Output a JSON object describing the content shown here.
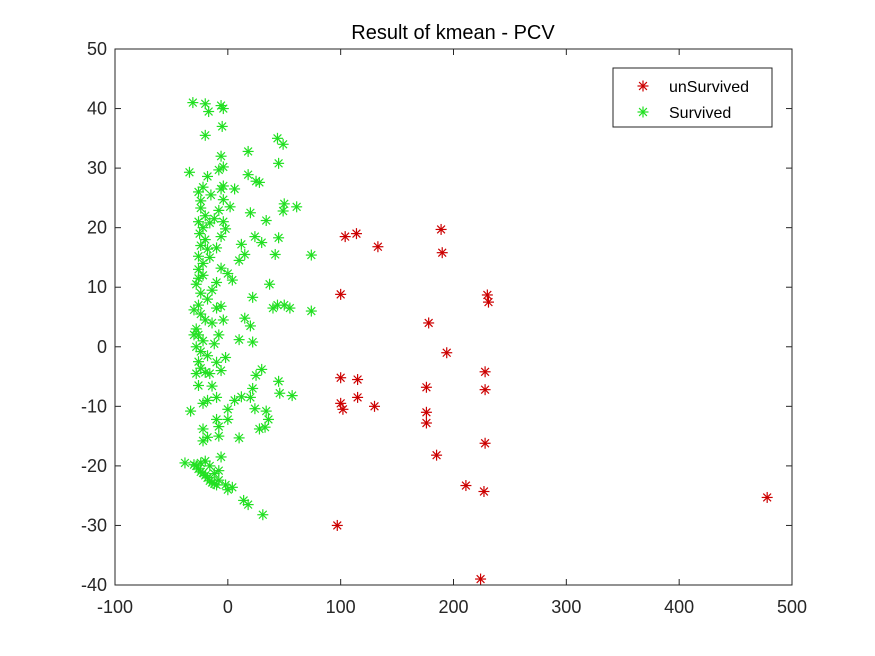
{
  "chart_data": {
    "type": "scatter",
    "title": "Result of kmean - PCV",
    "xlabel": "",
    "ylabel": "",
    "xlim": [
      -100,
      500
    ],
    "ylim": [
      -40,
      50
    ],
    "xticks": [
      -100,
      0,
      100,
      200,
      300,
      400,
      500
    ],
    "yticks": [
      -40,
      -30,
      -20,
      -10,
      0,
      10,
      20,
      30,
      40,
      50
    ],
    "xtick_labels": [
      "-100",
      "0",
      "100",
      "200",
      "300",
      "400",
      "500"
    ],
    "ytick_labels": [
      "-40",
      "-30",
      "-20",
      "-10",
      "0",
      "10",
      "20",
      "30",
      "40",
      "50"
    ],
    "grid": false,
    "legend_position": "top-right",
    "marker": "*",
    "series": [
      {
        "name": "unSurvived",
        "color": "#cc0000",
        "points": [
          [
            97,
            -30
          ],
          [
            100,
            8.8
          ],
          [
            100,
            -5.2
          ],
          [
            100,
            -9.5
          ],
          [
            102,
            -10.5
          ],
          [
            104,
            18.5
          ],
          [
            114,
            19
          ],
          [
            115,
            -5.5
          ],
          [
            115,
            -8.5
          ],
          [
            130,
            -10
          ],
          [
            133,
            16.8
          ],
          [
            176,
            -6.8
          ],
          [
            176,
            -11
          ],
          [
            176,
            -12.8
          ],
          [
            178,
            4
          ],
          [
            185,
            -18.2
          ],
          [
            189,
            19.7
          ],
          [
            190,
            15.8
          ],
          [
            194,
            -1
          ],
          [
            211,
            -23.3
          ],
          [
            224,
            -39
          ],
          [
            227,
            -24.3
          ],
          [
            228,
            -16.2
          ],
          [
            228,
            -4.2
          ],
          [
            228,
            -7.2
          ],
          [
            230,
            8.7
          ],
          [
            231,
            7.5
          ],
          [
            478,
            -25.3
          ]
        ]
      },
      {
        "name": "Survived",
        "color": "#22e022",
        "points": [
          [
            -33,
            -10.8
          ],
          [
            -34,
            29.3
          ],
          [
            -31,
            41
          ],
          [
            -38,
            -19.5
          ],
          [
            -20,
            40.8
          ],
          [
            -20,
            35.5
          ],
          [
            -17,
            39.5
          ],
          [
            -6,
            40.5
          ],
          [
            -4,
            40
          ],
          [
            -5,
            37
          ],
          [
            -6,
            32
          ],
          [
            -4,
            30.2
          ],
          [
            -8,
            29.7
          ],
          [
            -4,
            27
          ],
          [
            -6,
            26.5
          ],
          [
            -18,
            28.6
          ],
          [
            -22,
            26.8
          ],
          [
            -26,
            26
          ],
          [
            -15,
            25.5
          ],
          [
            -24,
            23.3
          ],
          [
            -20,
            22
          ],
          [
            -26,
            21
          ],
          [
            -22,
            20
          ],
          [
            -16,
            20.8
          ],
          [
            -12,
            21.5
          ],
          [
            -25,
            19
          ],
          [
            -20,
            18
          ],
          [
            -24,
            17
          ],
          [
            -18,
            16.4
          ],
          [
            -26,
            15.2
          ],
          [
            -22,
            14
          ],
          [
            -16,
            15
          ],
          [
            -10,
            16.6
          ],
          [
            -6,
            18.5
          ],
          [
            -4,
            21
          ],
          [
            -2,
            19.8
          ],
          [
            -8,
            22.9
          ],
          [
            -4,
            24.7
          ],
          [
            2,
            23.5
          ],
          [
            6,
            26.5
          ],
          [
            12,
            17.2
          ],
          [
            18,
            32.8
          ],
          [
            18,
            28.9
          ],
          [
            25,
            27.8
          ],
          [
            28,
            27.6
          ],
          [
            20,
            22.5
          ],
          [
            24,
            18.5
          ],
          [
            30,
            17.5
          ],
          [
            34,
            21.2
          ],
          [
            44,
            35
          ],
          [
            45,
            30.8
          ],
          [
            49,
            34
          ],
          [
            50,
            24
          ],
          [
            49,
            22.8
          ],
          [
            61,
            23.5
          ],
          [
            45,
            18.3
          ],
          [
            42,
            15.5
          ],
          [
            37,
            10.5
          ],
          [
            44,
            7
          ],
          [
            50,
            7
          ],
          [
            55,
            6.5
          ],
          [
            74,
            15.4
          ],
          [
            74,
            6
          ],
          [
            10,
            14.5
          ],
          [
            15,
            15.5
          ],
          [
            -26,
            13
          ],
          [
            -22,
            12
          ],
          [
            -28,
            10.5
          ],
          [
            -24,
            9
          ],
          [
            -18,
            8
          ],
          [
            -14,
            9.5
          ],
          [
            -10,
            10.8
          ],
          [
            -6,
            13.2
          ],
          [
            0,
            12.3
          ],
          [
            4,
            11.2
          ],
          [
            -26,
            7
          ],
          [
            -24,
            5.5
          ],
          [
            -20,
            4.5
          ],
          [
            -28,
            3
          ],
          [
            -26,
            2
          ],
          [
            -22,
            1
          ],
          [
            -28,
            0
          ],
          [
            -24,
            -0.8
          ],
          [
            -18,
            -1.5
          ],
          [
            -26,
            -2.5
          ],
          [
            -24,
            -3.6
          ],
          [
            -20,
            -4.3
          ],
          [
            -14,
            4
          ],
          [
            -10,
            6.5
          ],
          [
            -8,
            2
          ],
          [
            -12,
            0.5
          ],
          [
            -6,
            6.8
          ],
          [
            -4,
            4.5
          ],
          [
            -10,
            -2.6
          ],
          [
            -16,
            -4.5
          ],
          [
            -26,
            -6.5
          ],
          [
            -22,
            -9.5
          ],
          [
            -18,
            -9
          ],
          [
            -10,
            -8.5
          ],
          [
            -14,
            -6.6
          ],
          [
            -2,
            -1.8
          ],
          [
            -6,
            -4
          ],
          [
            0,
            -10.5
          ],
          [
            6,
            -9
          ],
          [
            12,
            -8.4
          ],
          [
            -22,
            -13.8
          ],
          [
            -22,
            -15.8
          ],
          [
            -18,
            -15.2
          ],
          [
            -8,
            -13.4
          ],
          [
            -8,
            -15
          ],
          [
            0,
            -12.2
          ],
          [
            10,
            -15.3
          ],
          [
            20,
            -8.5
          ],
          [
            24,
            -10.4
          ],
          [
            34,
            -10.8
          ],
          [
            36,
            -12.2
          ],
          [
            33,
            -13.5
          ],
          [
            28,
            -13.8
          ],
          [
            25,
            -4.8
          ],
          [
            22,
            -7
          ],
          [
            30,
            -3.8
          ],
          [
            45,
            -5.8
          ],
          [
            46,
            -7.8
          ],
          [
            57,
            -8.2
          ],
          [
            15,
            4.8
          ],
          [
            10,
            1.2
          ],
          [
            20,
            3.5
          ],
          [
            22,
            8.3
          ],
          [
            40,
            6.5
          ],
          [
            22,
            0.8
          ],
          [
            -28,
            -20
          ],
          [
            -26,
            -20.5
          ],
          [
            -24,
            -21
          ],
          [
            -22,
            -21.2
          ],
          [
            -20,
            -21.6
          ],
          [
            -18,
            -22
          ],
          [
            -16,
            -22.5
          ],
          [
            -14,
            -22.8
          ],
          [
            -12,
            -23
          ],
          [
            -10,
            -23.2
          ],
          [
            -30,
            -19.8
          ],
          [
            -24,
            -19.5
          ],
          [
            -20,
            -19.2
          ],
          [
            -16,
            -20
          ],
          [
            -12,
            -21.3
          ],
          [
            -8,
            -22.4
          ],
          [
            -6,
            -18.5
          ],
          [
            -2,
            -23.2
          ],
          [
            0,
            -24
          ],
          [
            4,
            -23.6
          ],
          [
            14,
            -25.8
          ],
          [
            18,
            -26.5
          ],
          [
            31,
            -28.2
          ],
          [
            -10,
            -12.2
          ],
          [
            -8,
            -20.8
          ],
          [
            -30,
            2
          ],
          [
            -28,
            -4.5
          ],
          [
            -30,
            6.2
          ],
          [
            -26,
            11.5
          ],
          [
            -24,
            24.5
          ]
        ]
      }
    ]
  }
}
